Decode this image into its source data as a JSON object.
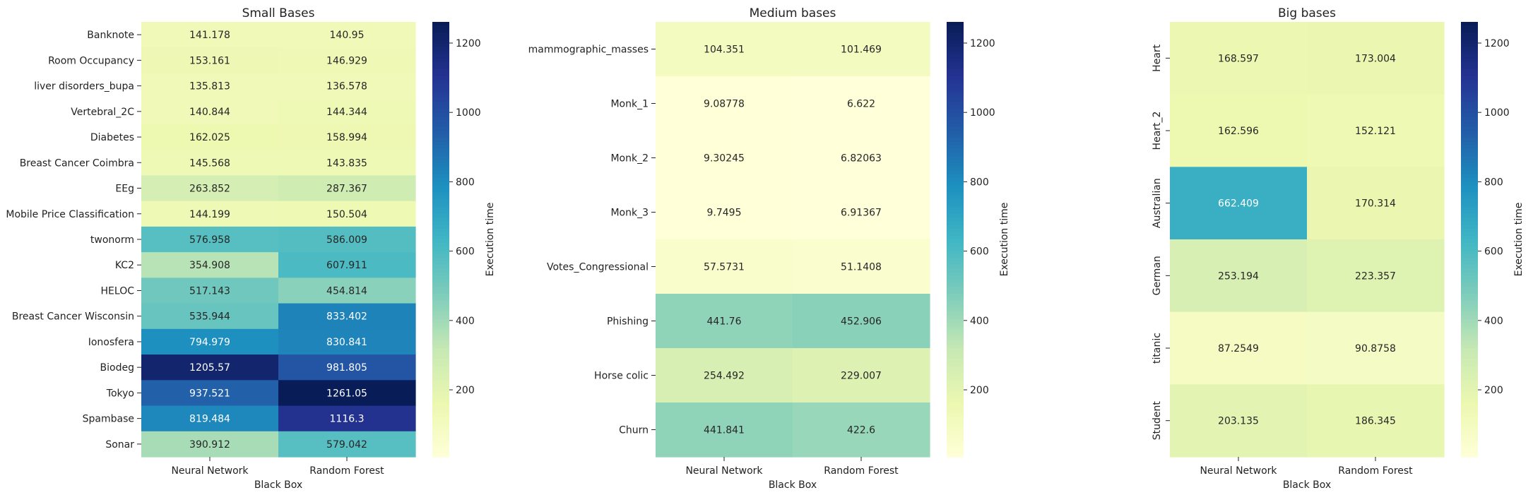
{
  "chart_data": [
    {
      "type": "heatmap",
      "title": "Small Bases",
      "xlabel": "Black Box",
      "ylabel": "",
      "x_categories": [
        "Neural Network",
        "Random Forest"
      ],
      "y_categories": [
        "Banknote",
        "Room Occupancy",
        "liver disorders_bupa",
        "Vertebral_2C",
        "Diabetes",
        "Breast Cancer Coimbra",
        "EEg",
        "Mobile Price Classification",
        "twonorm",
        "KC2",
        "HELOC",
        "Breast Cancer Wisconsin",
        "Ionosfera",
        "Biodeg",
        "Tokyo",
        "Spambase",
        "Sonar"
      ],
      "values": [
        [
          141.178,
          140.95
        ],
        [
          153.161,
          146.929
        ],
        [
          135.813,
          136.578
        ],
        [
          140.844,
          144.344
        ],
        [
          162.025,
          158.994
        ],
        [
          145.568,
          143.835
        ],
        [
          263.852,
          287.367
        ],
        [
          144.199,
          150.504
        ],
        [
          576.958,
          586.009
        ],
        [
          354.908,
          607.911
        ],
        [
          517.143,
          454.814
        ],
        [
          535.944,
          833.402
        ],
        [
          794.979,
          830.841
        ],
        [
          1205.57,
          981.805
        ],
        [
          937.521,
          1261.05
        ],
        [
          819.484,
          1116.3
        ],
        [
          390.912,
          579.042
        ]
      ],
      "value_labels": [
        [
          "141.178",
          "140.95"
        ],
        [
          "153.161",
          "146.929"
        ],
        [
          "135.813",
          "136.578"
        ],
        [
          "140.844",
          "144.344"
        ],
        [
          "162.025",
          "158.994"
        ],
        [
          "145.568",
          "143.835"
        ],
        [
          "263.852",
          "287.367"
        ],
        [
          "144.199",
          "150.504"
        ],
        [
          "576.958",
          "586.009"
        ],
        [
          "354.908",
          "607.911"
        ],
        [
          "517.143",
          "454.814"
        ],
        [
          "535.944",
          "833.402"
        ],
        [
          "794.979",
          "830.841"
        ],
        [
          "1205.57",
          "981.805"
        ],
        [
          "937.521",
          "1261.05"
        ],
        [
          "819.484",
          "1116.3"
        ],
        [
          "390.912",
          "579.042"
        ]
      ],
      "y_label_rotation": "horizontal",
      "colorbar": {
        "label": "Execution time",
        "ticks": [
          "200",
          "400",
          "600",
          "800",
          "1000",
          "1200"
        ]
      }
    },
    {
      "type": "heatmap",
      "title": "Medium bases",
      "xlabel": "Black Box",
      "ylabel": "",
      "x_categories": [
        "Neural Network",
        "Random Forest"
      ],
      "y_categories": [
        "mammographic_masses",
        "Monk_1",
        "Monk_2",
        "Monk_3",
        "Votes_Congressional",
        "Phishing",
        "Horse colic",
        "Churn"
      ],
      "values": [
        [
          104.351,
          101.469
        ],
        [
          9.08778,
          6.622
        ],
        [
          9.30245,
          6.82063
        ],
        [
          9.7495,
          6.91367
        ],
        [
          57.5731,
          51.1408
        ],
        [
          441.76,
          452.906
        ],
        [
          254.492,
          229.007
        ],
        [
          441.841,
          422.6
        ]
      ],
      "value_labels": [
        [
          "104.351",
          "101.469"
        ],
        [
          "9.08778",
          "6.622"
        ],
        [
          "9.30245",
          "6.82063"
        ],
        [
          "9.7495",
          "6.91367"
        ],
        [
          "57.5731",
          "51.1408"
        ],
        [
          "441.76",
          "452.906"
        ],
        [
          "254.492",
          "229.007"
        ],
        [
          "441.841",
          "422.6"
        ]
      ],
      "y_label_rotation": "horizontal",
      "colorbar": {
        "label": "Execution time",
        "ticks": [
          "200",
          "400",
          "600",
          "800",
          "1000",
          "1200"
        ]
      }
    },
    {
      "type": "heatmap",
      "title": "Big bases",
      "xlabel": "Black Box",
      "ylabel": "",
      "x_categories": [
        "Neural Network",
        "Random Forest"
      ],
      "y_categories": [
        "Heart",
        "Heart_2",
        "Australian",
        "German",
        "titanic",
        "Student"
      ],
      "values": [
        [
          168.597,
          173.004
        ],
        [
          162.596,
          152.121
        ],
        [
          662.409,
          170.314
        ],
        [
          253.194,
          223.357
        ],
        [
          87.2549,
          90.8758
        ],
        [
          203.135,
          186.345
        ]
      ],
      "value_labels": [
        [
          "168.597",
          "173.004"
        ],
        [
          "162.596",
          "152.121"
        ],
        [
          "662.409",
          "170.314"
        ],
        [
          "253.194",
          "223.357"
        ],
        [
          "87.2549",
          "90.8758"
        ],
        [
          "203.135",
          "186.345"
        ]
      ],
      "y_label_rotation": "vertical",
      "colorbar": {
        "label": "Execution time",
        "ticks": [
          "200",
          "400",
          "600",
          "800",
          "1000",
          "1200"
        ]
      }
    }
  ],
  "colormap": {
    "name": "YlGnBu",
    "vmin": 6.622,
    "vmax": 1261.05,
    "stops": [
      "#ffffd9",
      "#edf8b1",
      "#c7e9b4",
      "#7fcdbb",
      "#41b6c4",
      "#1d91c0",
      "#225ea8",
      "#253494",
      "#081d58"
    ]
  }
}
